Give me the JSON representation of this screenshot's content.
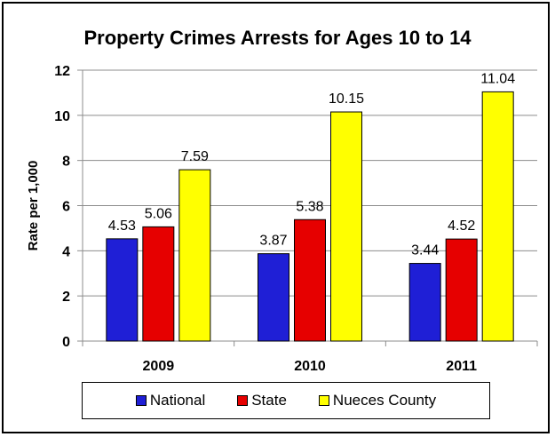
{
  "chart_data": {
    "type": "bar",
    "title": "Property Crimes Arrests for Ages 10 to 14",
    "xlabel": "",
    "ylabel": "Rate per 1,000",
    "categories": [
      "2009",
      "2010",
      "2011"
    ],
    "series": [
      {
        "name": "National",
        "color": "#1f1fd6",
        "values": [
          4.53,
          3.87,
          3.44
        ],
        "labels": [
          "4.53",
          "3.87",
          "3.44"
        ]
      },
      {
        "name": "State",
        "color": "#e60000",
        "values": [
          5.06,
          5.38,
          4.52
        ],
        "labels": [
          "5.06",
          "5.38",
          "4.52"
        ]
      },
      {
        "name": "Nueces County",
        "color": "#ffff00",
        "values": [
          7.59,
          10.15,
          11.04
        ],
        "labels": [
          "7.59",
          "10.15",
          "11.04"
        ]
      }
    ],
    "ylim": [
      0,
      12
    ],
    "yticks": [
      "0",
      "2",
      "4",
      "6",
      "8",
      "10",
      "12"
    ],
    "grid": true,
    "legend_position": "bottom"
  }
}
